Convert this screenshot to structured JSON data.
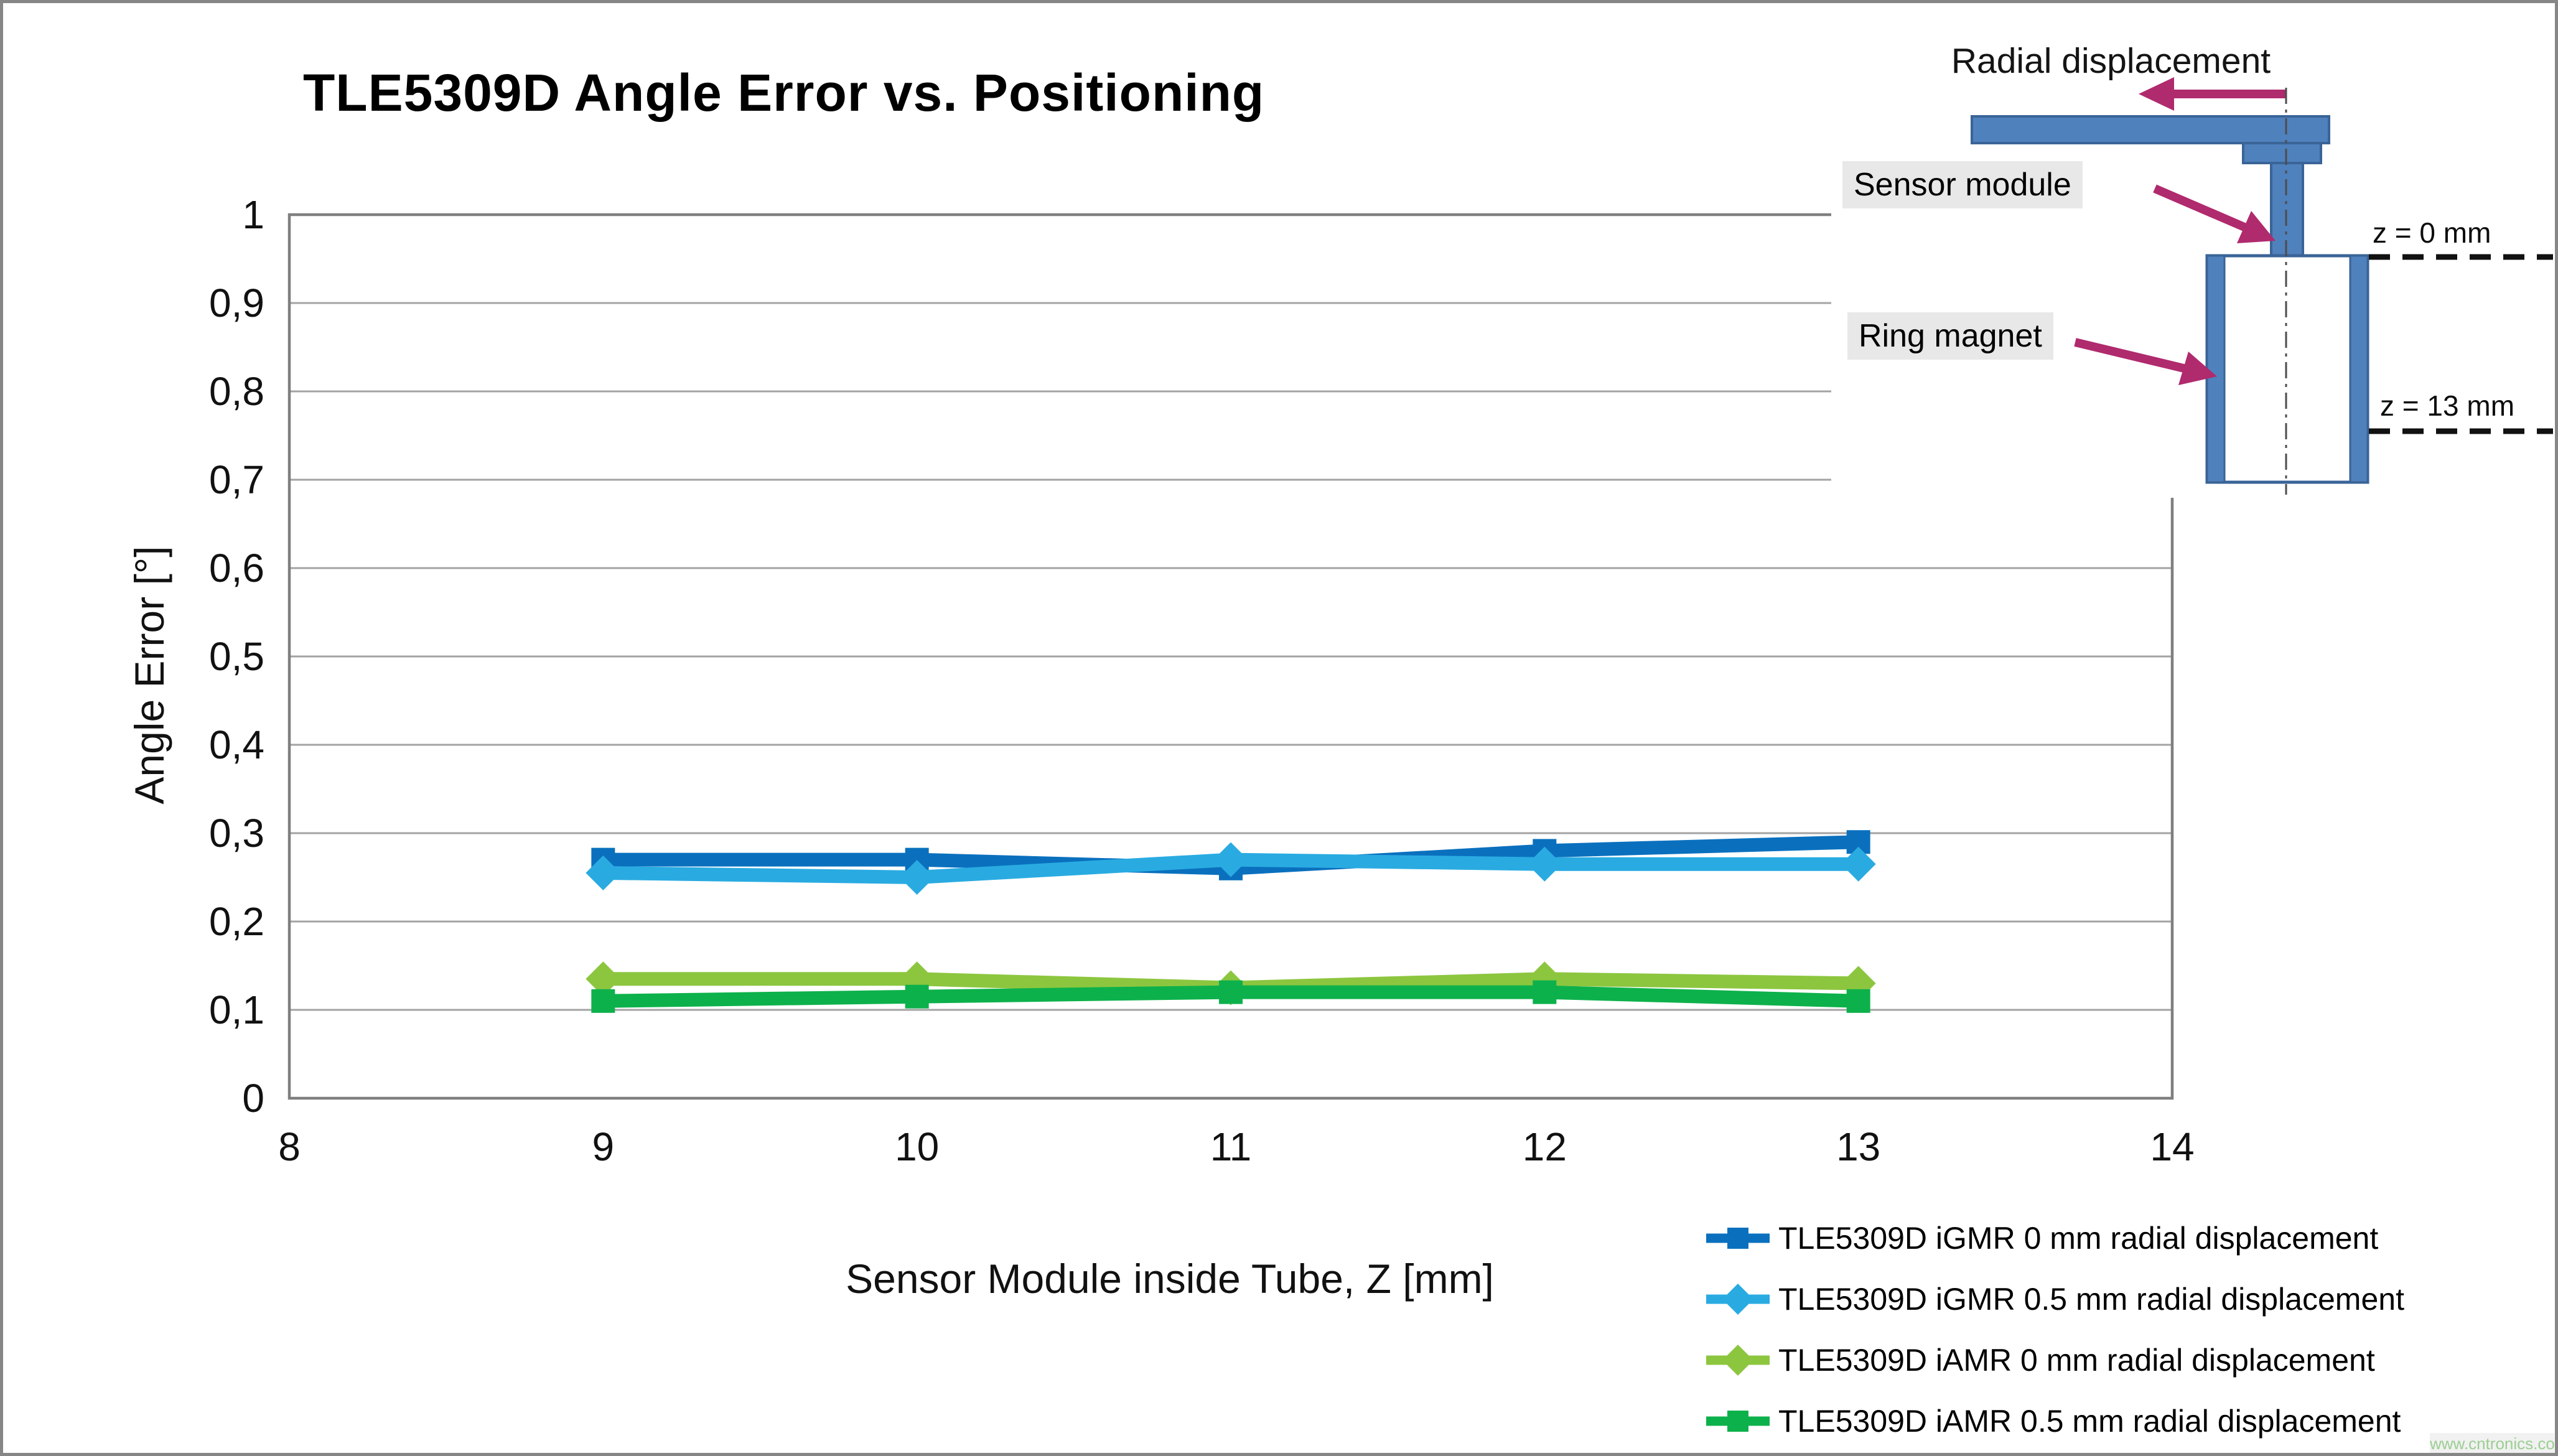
{
  "page": {
    "watermark": "www.cntronics.com"
  },
  "chart_data": {
    "type": "line",
    "title": "TLE5309D Angle Error vs. Positioning",
    "xlabel": "Sensor Module inside Tube, Z [mm]",
    "ylabel": "Angle Error [°]",
    "xlim": [
      8,
      14
    ],
    "ylim": [
      0,
      1
    ],
    "x_ticks": [
      8,
      9,
      10,
      11,
      12,
      13,
      14
    ],
    "y_ticks": [
      1,
      0.9,
      0.8,
      0.7,
      0.6,
      0.5,
      0.4,
      0.3,
      0.2,
      0.1,
      0
    ],
    "y_tick_labels": [
      "1",
      "0,9",
      "0,8",
      "0,7",
      "0,6",
      "0,5",
      "0,4",
      "0,3",
      "0,2",
      "0,1",
      "0"
    ],
    "grid": "horizontal",
    "legend_position": "bottom-right",
    "grid_color": "#a3a3a3",
    "border_color": "#7f7f7f",
    "x": [
      9,
      10,
      11,
      12,
      13
    ],
    "series": [
      {
        "name": "TLE5309D iGMR 0 mm radial displacement",
        "color": "#0a70be",
        "marker": "square",
        "values": [
          0.27,
          0.27,
          0.26,
          0.28,
          0.29
        ]
      },
      {
        "name": "TLE5309D iGMR 0.5 mm radial displacement",
        "color": "#29abe1",
        "marker": "diamond",
        "values": [
          0.255,
          0.25,
          0.27,
          0.265,
          0.265
        ]
      },
      {
        "name": "TLE5309D iAMR 0 mm radial displacement",
        "color": "#8cc63f",
        "marker": "diamond",
        "values": [
          0.135,
          0.135,
          0.125,
          0.135,
          0.13
        ]
      },
      {
        "name": "TLE5309D iAMR 0.5 mm radial displacement",
        "color": "#0db14b",
        "marker": "square",
        "values": [
          0.11,
          0.115,
          0.12,
          0.12,
          0.11
        ]
      }
    ]
  },
  "inset": {
    "radial_label": "Radial displacement",
    "sensor_label": "Sensor module",
    "magnet_label": "Ring magnet",
    "z_top_label": "z = 0 mm",
    "z_bottom_label": "z = 13 mm",
    "shape_fill": "#4f81bd",
    "shape_stroke": "#3a6497",
    "arrow_color": "#b02a6e"
  }
}
